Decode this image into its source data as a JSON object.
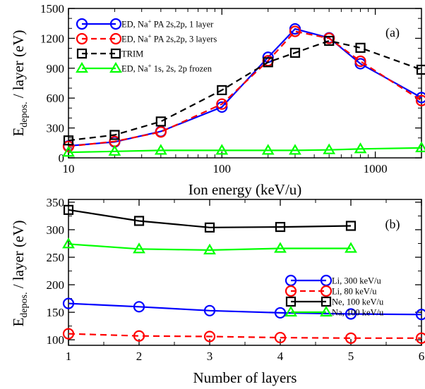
{
  "chart_data": [
    {
      "type": "line",
      "panel_label": "(a)",
      "xlabel": "Ion energy (keV/u)",
      "ylabel_main": "E",
      "ylabel_sub": "depos.",
      "ylabel_rest": " / layer (eV)",
      "xscale": "log",
      "xlim": [
        10,
        2000
      ],
      "ylim": [
        0,
        1500
      ],
      "xticks": [
        10,
        100,
        1000
      ],
      "xtick_labels": [
        "10",
        "100",
        "1000"
      ],
      "yticks": [
        0,
        300,
        600,
        900,
        1200,
        1500
      ],
      "ytick_labels": [
        "0",
        "300",
        "600",
        "900",
        "1200",
        "1500"
      ],
      "legend_position": "top-left",
      "series": [
        {
          "name": "ED, Na+ PA 2s,2p, 1 layer",
          "name_parts": [
            "ED, Na",
            "+",
            " PA 2s,2p, 1 layer"
          ],
          "color": "#0000ff",
          "marker": "circle",
          "dash": "solid",
          "x": [
            10,
            20,
            40,
            100,
            200,
            300,
            500,
            800,
            2000
          ],
          "y": [
            120,
            160,
            265,
            510,
            1010,
            1295,
            1205,
            945,
            605
          ]
        },
        {
          "name": "ED, Na+ PA 2s,2p, 3 layers",
          "name_parts": [
            "ED, Na",
            "+",
            " PA 2s,2p, 3 layers"
          ],
          "color": "#ff0000",
          "marker": "circle",
          "dash": "dashed",
          "x": [
            10,
            20,
            40,
            100,
            200,
            300,
            500,
            800,
            2000
          ],
          "y": [
            115,
            165,
            260,
            540,
            975,
            1270,
            1200,
            970,
            575
          ]
        },
        {
          "name": "TRIM",
          "name_parts": [
            "TRIM",
            "",
            ""
          ],
          "color": "#000000",
          "marker": "square",
          "dash": "dashed",
          "x": [
            10,
            20,
            40,
            100,
            200,
            300,
            500,
            800,
            2000
          ],
          "y": [
            175,
            230,
            365,
            680,
            960,
            1055,
            1175,
            1105,
            885
          ]
        },
        {
          "name": "ED, Na+ 1s, 2s, 2p frozen",
          "name_parts": [
            "ED, Na",
            "+",
            " 1s, 2s, 2p frozen"
          ],
          "color": "#00ff00",
          "marker": "triangle",
          "dash": "solid",
          "x": [
            10,
            20,
            40,
            100,
            200,
            300,
            500,
            800,
            2000
          ],
          "y": [
            55,
            65,
            75,
            75,
            75,
            75,
            80,
            90,
            100
          ]
        }
      ]
    },
    {
      "type": "line",
      "panel_label": "(b)",
      "xlabel": "Number of layers",
      "ylabel_main": "E",
      "ylabel_sub": "depos.",
      "ylabel_rest": " / layer (eV)",
      "xscale": "linear",
      "xlim": [
        1,
        6
      ],
      "ylim": [
        90,
        355
      ],
      "xticks": [
        1,
        2,
        3,
        4,
        5,
        6
      ],
      "xtick_labels": [
        "1",
        "2",
        "3",
        "4",
        "5",
        "6"
      ],
      "yticks": [
        100,
        150,
        200,
        250,
        300,
        350
      ],
      "ytick_labels": [
        "100",
        "150",
        "200",
        "250",
        "300",
        "350"
      ],
      "legend_position": "right",
      "series": [
        {
          "name": "Li, 300 keV/u",
          "color": "#0000ff",
          "marker": "circle",
          "dash": "solid",
          "x": [
            1,
            2,
            3,
            4,
            5,
            6
          ],
          "y": [
            166,
            160,
            153,
            149,
            147,
            146
          ]
        },
        {
          "name": "Li, 80 keV/u",
          "color": "#ff0000",
          "marker": "circle",
          "dash": "dashed",
          "x": [
            1,
            2,
            3,
            4,
            5,
            6
          ],
          "y": [
            111,
            107,
            106,
            104,
            103,
            103
          ]
        },
        {
          "name": "Ne, 100 keV/u",
          "color": "#000000",
          "marker": "square",
          "dash": "solid",
          "x": [
            1,
            2,
            3,
            4,
            5
          ],
          "y": [
            336,
            316,
            304,
            305,
            307
          ]
        },
        {
          "name": "Na, 100 keV/u",
          "color": "#00ff00",
          "marker": "triangle",
          "dash": "solid",
          "x": [
            1,
            2,
            3,
            4,
            5
          ],
          "y": [
            274,
            265,
            263,
            266,
            266
          ]
        }
      ]
    }
  ]
}
